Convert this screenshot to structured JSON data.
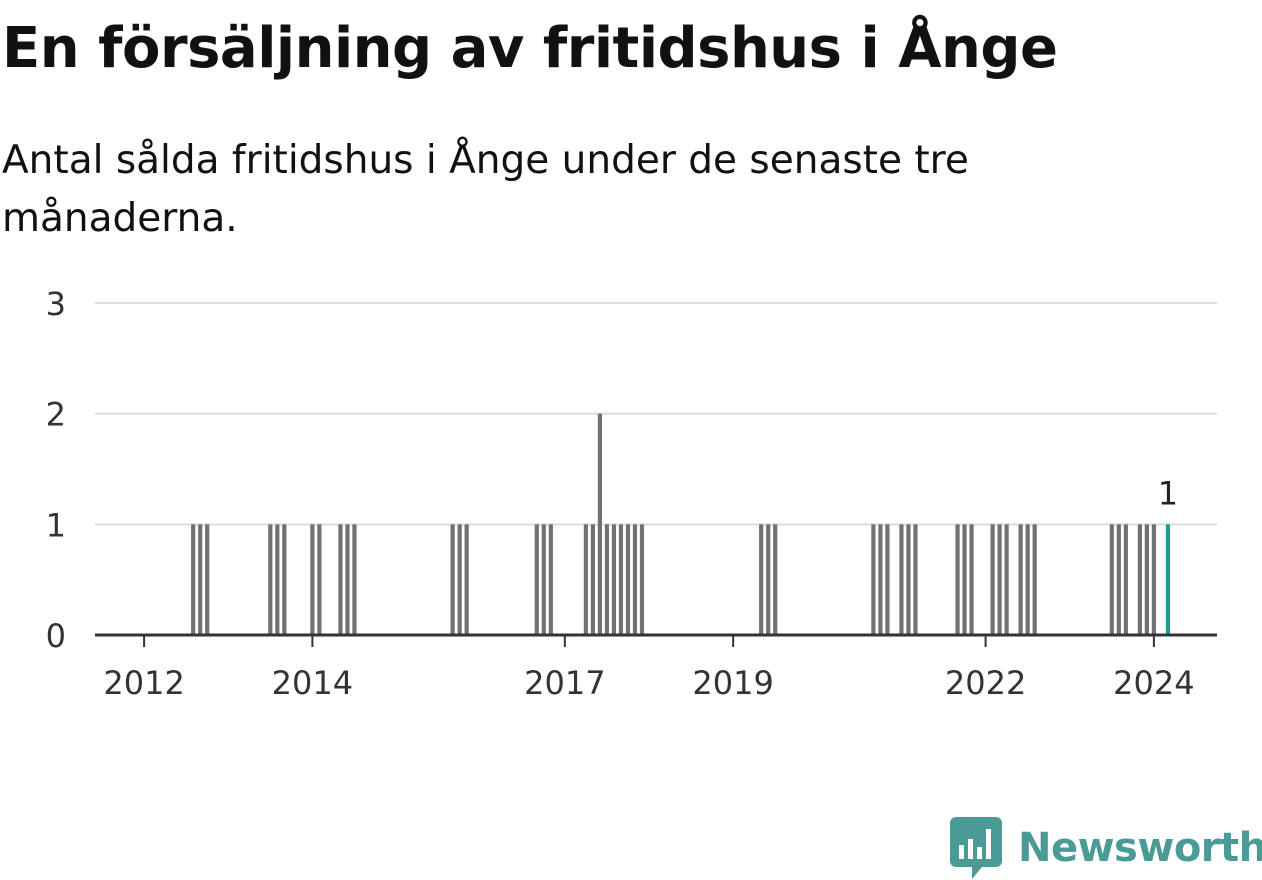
{
  "title": "En försäljning av fritidshus i Ånge",
  "subtitle": "Antal sålda fritidshus i Ånge under de senaste tre månaderna.",
  "brand": "Newsworthy",
  "colors": {
    "bar": "#717075",
    "highlight": "#1a9e8f",
    "grid": "#dddddd",
    "axis": "#333333",
    "brand": "#4a9a96"
  },
  "chart_data": {
    "type": "bar",
    "title": "En försäljning av fritidshus i Ånge",
    "subtitle": "Antal sålda fritidshus i Ånge under de senaste tre månaderna.",
    "xlabel": "",
    "ylabel": "",
    "ylim": [
      0,
      3
    ],
    "yticks": [
      0,
      1,
      2,
      3
    ],
    "xlim": [
      "2011-06",
      "2024-10"
    ],
    "xticks": [
      {
        "date": "2012-01",
        "label": "2012"
      },
      {
        "date": "2014-01",
        "label": "2014"
      },
      {
        "date": "2017-01",
        "label": "2017"
      },
      {
        "date": "2019-01",
        "label": "2019"
      },
      {
        "date": "2022-01",
        "label": "2022"
      },
      {
        "date": "2024-01",
        "label": "2024"
      }
    ],
    "grid": true,
    "highlight_label": "1",
    "series": [
      {
        "x": [
          "2012-08",
          "2012-09",
          "2012-10",
          "2013-07",
          "2013-08",
          "2013-09",
          "2014-01",
          "2014-02",
          "2014-05",
          "2014-06",
          "2014-07",
          "2015-09",
          "2015-10",
          "2015-11",
          "2016-09",
          "2016-10",
          "2016-11",
          "2017-04",
          "2017-05",
          "2017-06",
          "2017-07",
          "2017-08",
          "2017-09",
          "2017-10",
          "2017-11",
          "2017-12",
          "2019-05",
          "2019-06",
          "2019-07",
          "2020-09",
          "2020-10",
          "2020-11",
          "2021-01",
          "2021-02",
          "2021-03",
          "2021-09",
          "2021-10",
          "2021-11",
          "2022-02",
          "2022-03",
          "2022-04",
          "2022-06",
          "2022-07",
          "2022-08",
          "2023-07",
          "2023-08",
          "2023-09",
          "2023-11",
          "2023-12",
          "2024-01",
          "2024-03"
        ],
        "values": [
          1,
          1,
          1,
          1,
          1,
          1,
          1,
          1,
          1,
          1,
          1,
          1,
          1,
          1,
          1,
          1,
          1,
          1,
          1,
          2,
          1,
          1,
          1,
          1,
          1,
          1,
          1,
          1,
          1,
          1,
          1,
          1,
          1,
          1,
          1,
          1,
          1,
          1,
          1,
          1,
          1,
          1,
          1,
          1,
          1,
          1,
          1,
          1,
          1,
          1,
          1
        ],
        "highlight_index": 50
      }
    ]
  }
}
